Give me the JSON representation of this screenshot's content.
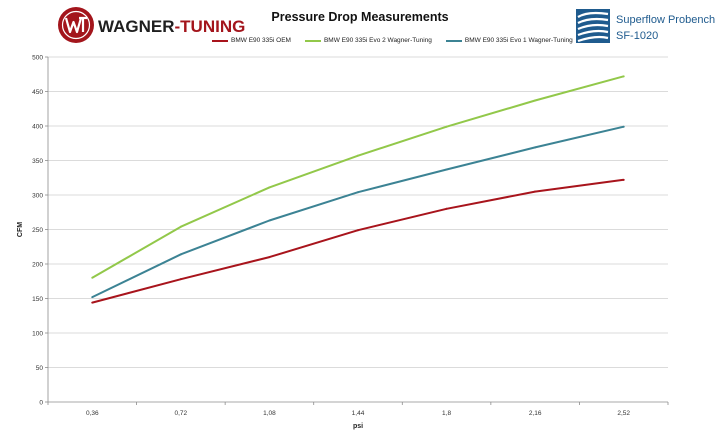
{
  "header": {
    "brand_left": "WAGNER-TUNING",
    "brand_left_parts": [
      "WAGNER",
      "-TUNING"
    ],
    "brand_right_line1": "Superflow Probench",
    "brand_right_line2": "SF-1020"
  },
  "colors": {
    "brand_red": "#a3151c",
    "brand_blue": "#1f5b8e",
    "grid": "#cfcfcf",
    "axis": "#8c8c8c"
  },
  "chart_data": {
    "type": "line",
    "title": "Pressure Drop Measurements",
    "xlabel": "psi",
    "ylabel": "CFM",
    "x": [
      "0,36",
      "0,72",
      "1,08",
      "1,44",
      "1,8",
      "2,16",
      "2,52"
    ],
    "ylim": [
      0,
      500
    ],
    "yticks": [
      0,
      50,
      100,
      150,
      200,
      250,
      300,
      350,
      400,
      450,
      500
    ],
    "grid": "horizontal",
    "legend": "top-center",
    "series": [
      {
        "name": "BMW E90 335i OEM",
        "color": "#a8141c",
        "values": [
          144,
          178,
          210,
          249,
          280,
          305,
          322
        ]
      },
      {
        "name": "BMW E90 335i Evo 2 Wagner-Tuning",
        "color": "#92c84a",
        "values": [
          180,
          254,
          311,
          357,
          399,
          437,
          472
        ]
      },
      {
        "name": "BMW E90 335i Evo 1 Wagner-Tuning",
        "color": "#3c8394",
        "values": [
          152,
          214,
          263,
          304,
          337,
          369,
          399
        ]
      }
    ]
  }
}
